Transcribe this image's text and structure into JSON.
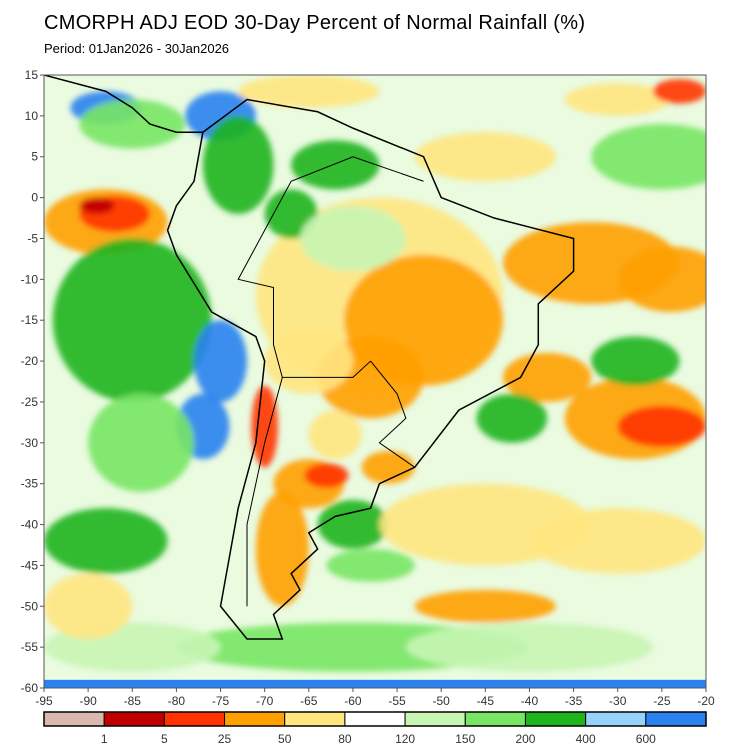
{
  "title": "CMORPH ADJ EOD 30-Day Percent of Normal Rainfall (%)",
  "period": "Period: 01Jan2026 - 30Jan2026",
  "map": {
    "lon_range": [
      -95,
      -20
    ],
    "lat_range": [
      -60,
      15
    ],
    "lon_ticks": [
      "-95",
      "-90",
      "-85",
      "-80",
      "-75",
      "-70",
      "-65",
      "-60",
      "-55",
      "-50",
      "-45",
      "-40",
      "-35",
      "-30",
      "-25",
      "-20"
    ],
    "lat_ticks": [
      "15",
      "10",
      "5",
      "0",
      "-5",
      "-10",
      "-15",
      "-20",
      "-25",
      "-30",
      "-35",
      "-40",
      "-45",
      "-50",
      "-55",
      "-60"
    ]
  },
  "legend": {
    "colors": [
      "#dbb8ae",
      "#c00000",
      "#ff3300",
      "#ffa000",
      "#ffe680",
      "#ffffff",
      "#c8f5b4",
      "#78e664",
      "#1eb41e",
      "#96d2fa",
      "#2a82f0"
    ],
    "labels": [
      "1",
      "5",
      "25",
      "50",
      "80",
      "120",
      "150",
      "200",
      "400",
      "600"
    ]
  }
}
